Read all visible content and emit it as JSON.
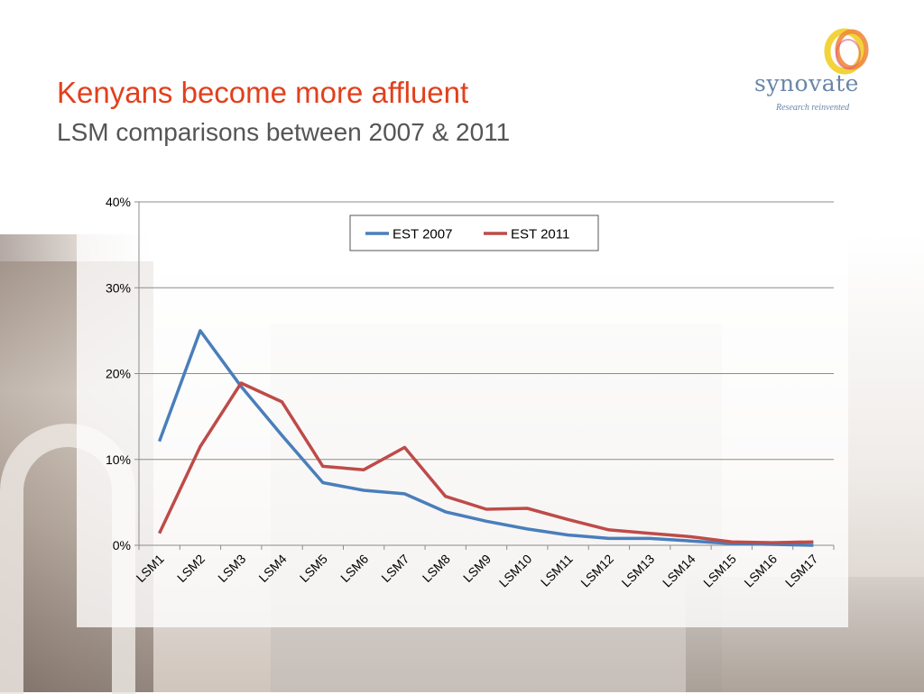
{
  "slide": {
    "title": "Kenyans become more affluent",
    "subtitle": "LSM comparisons between 2007 & 2011"
  },
  "logo": {
    "name": "synovate",
    "tagline": "Research reinvented",
    "colors": {
      "ring_orange": "#f08a3c",
      "ring_yellow": "#f2d33a",
      "ring_pink": "#e05a8a",
      "text": "#6a86a8"
    }
  },
  "chart_data": {
    "type": "line",
    "categories": [
      "LSM1",
      "LSM2",
      "LSM3",
      "LSM4",
      "LSM5",
      "LSM6",
      "LSM7",
      "LSM8",
      "LSM9",
      "LSM10",
      "LSM11",
      "LSM12",
      "LSM13",
      "LSM14",
      "LSM15",
      "LSM16",
      "LSM17"
    ],
    "series": [
      {
        "name": "EST 2007",
        "color": "#4a7ebb",
        "values": [
          12.1,
          25.0,
          18.5,
          12.8,
          7.3,
          6.4,
          6.0,
          3.9,
          2.8,
          1.9,
          1.2,
          0.8,
          0.8,
          0.5,
          0.2,
          0.1,
          0.0
        ]
      },
      {
        "name": "EST 2011",
        "color": "#be4b48",
        "values": [
          1.4,
          11.5,
          18.9,
          16.7,
          9.2,
          8.8,
          11.4,
          5.7,
          4.2,
          4.3,
          3.0,
          1.8,
          1.4,
          1.0,
          0.4,
          0.3,
          0.4
        ]
      }
    ],
    "y_ticks": [
      "0%",
      "10%",
      "20%",
      "30%",
      "40%"
    ],
    "ylim": [
      0,
      40
    ],
    "grid": true,
    "legend_position": "top-center"
  }
}
